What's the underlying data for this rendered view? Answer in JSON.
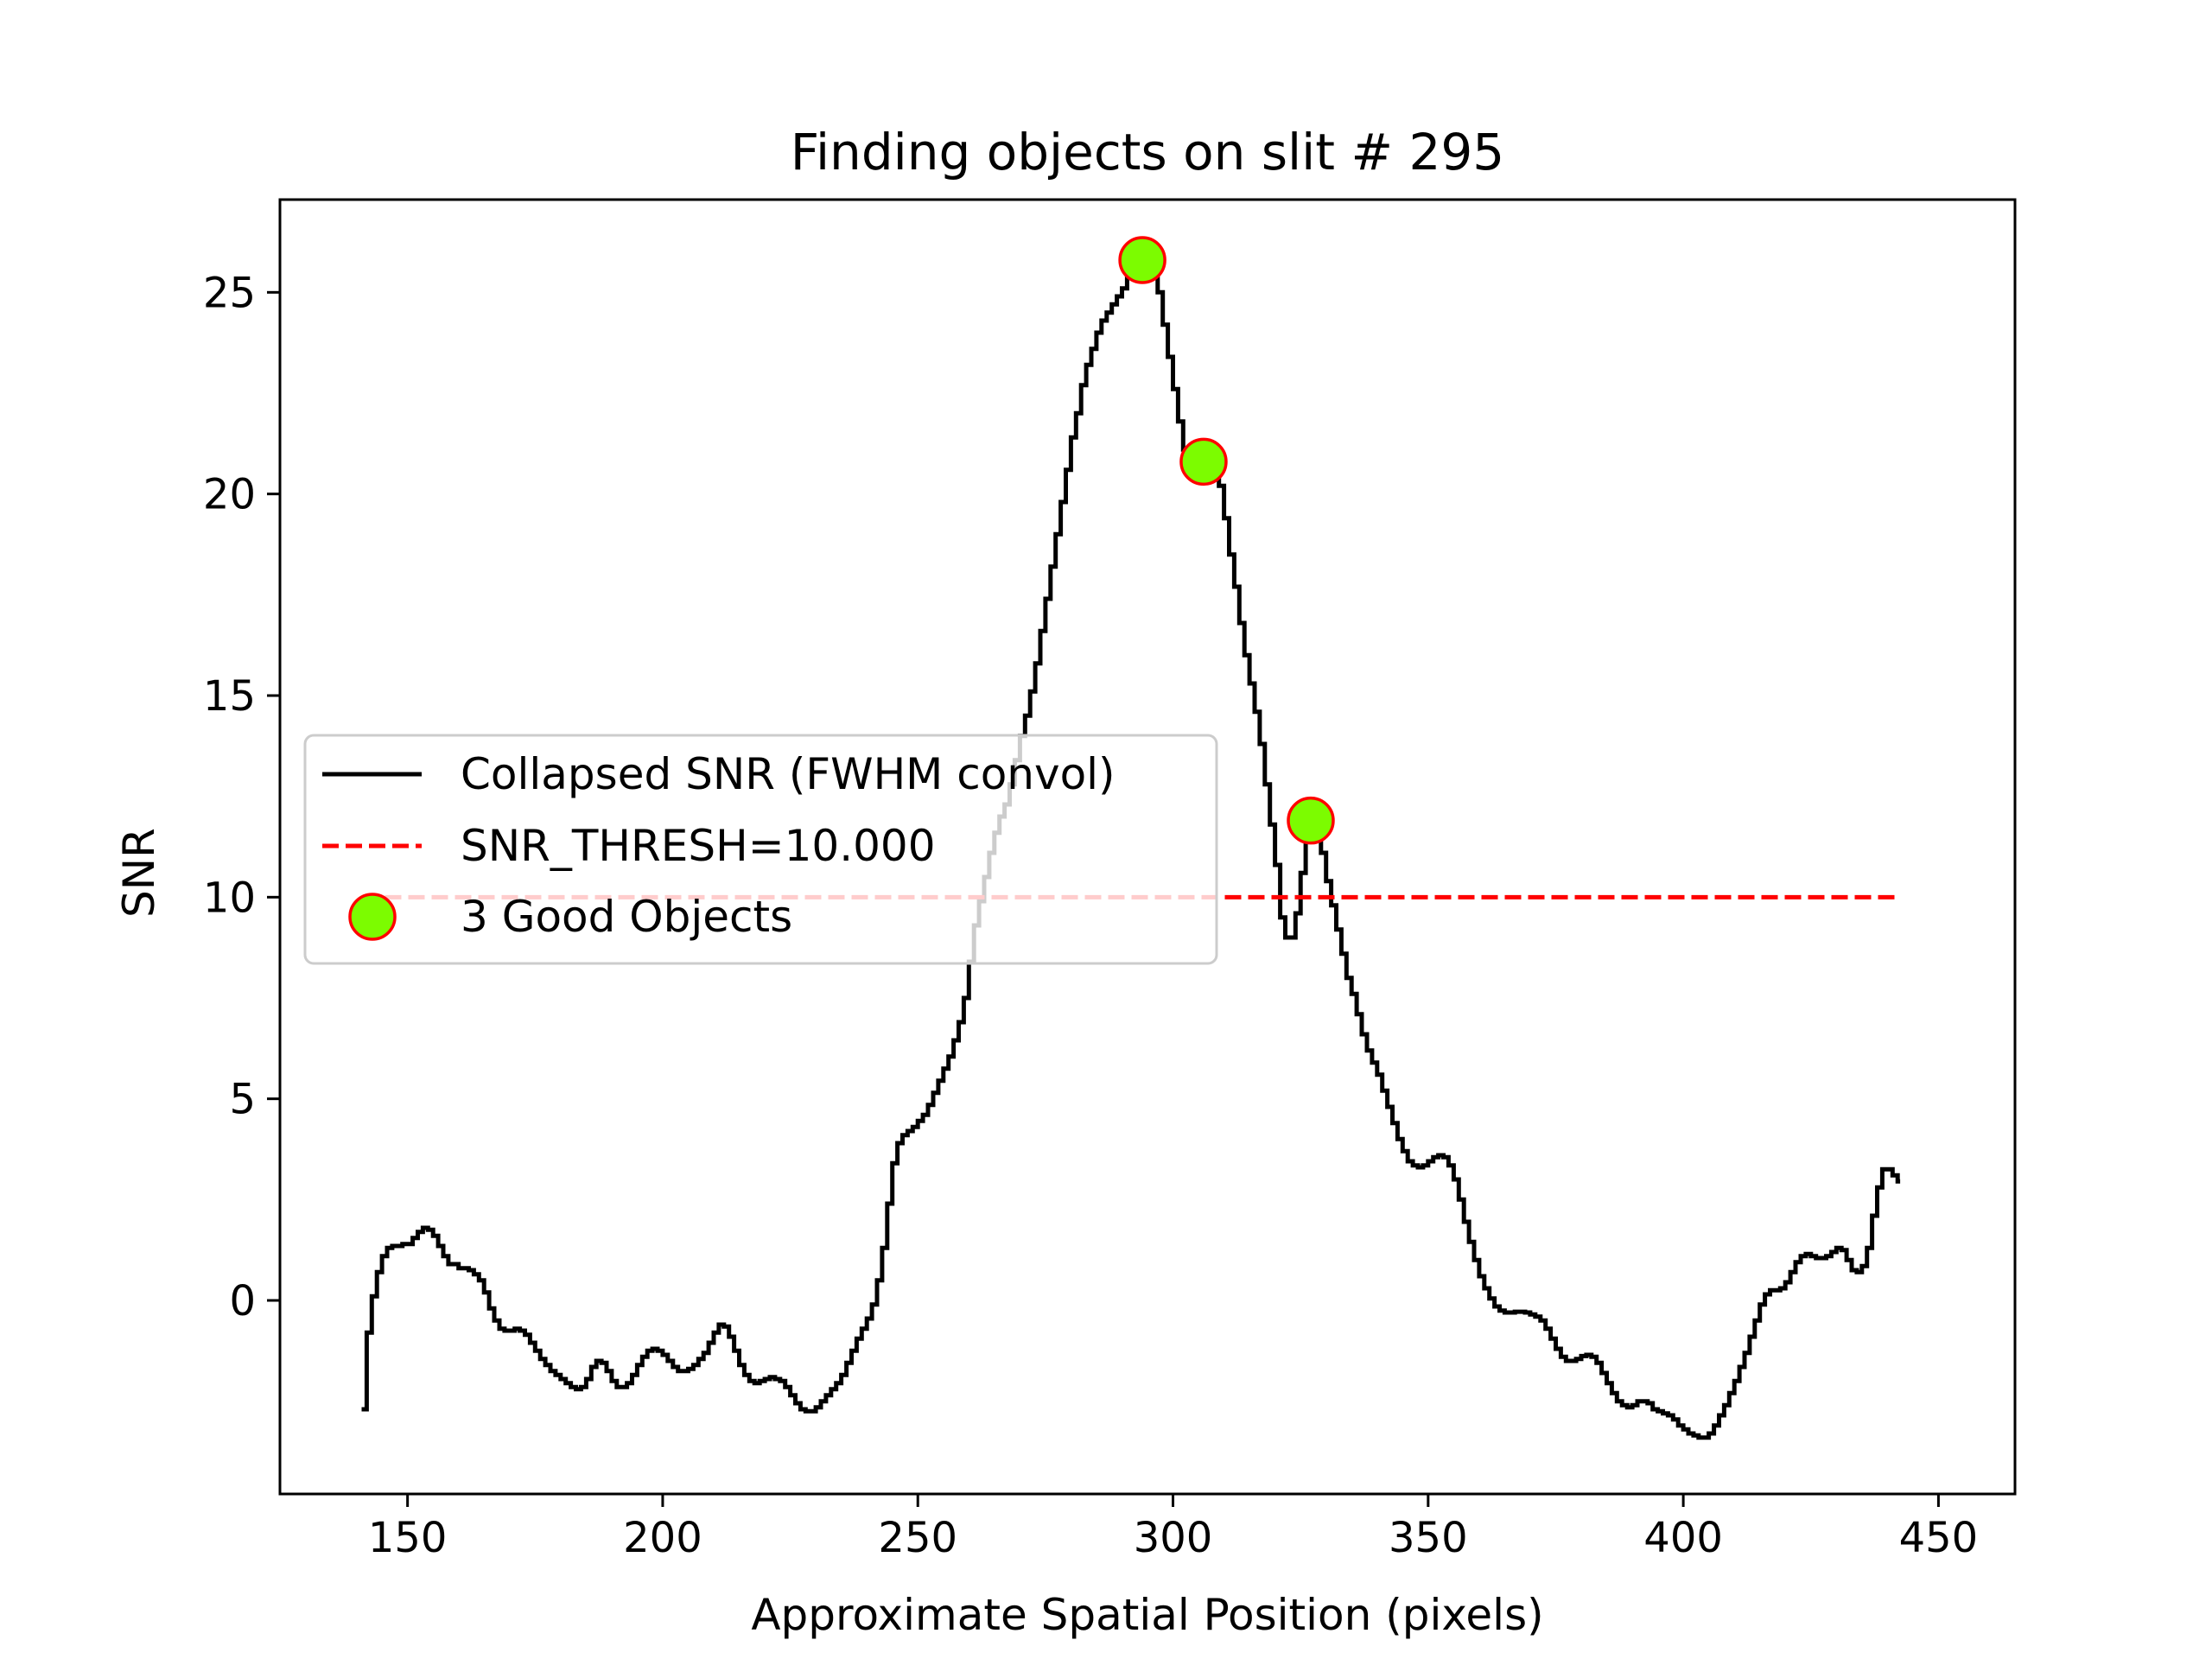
{
  "chart_data": {
    "type": "line",
    "title": "Finding objects on slit # 295",
    "xlabel": "Approximate Spatial Position (pixels)",
    "ylabel": "SNR",
    "xlim": [
      125,
      465
    ],
    "ylim": [
      -4.8,
      27.3
    ],
    "xticks": [
      150,
      200,
      250,
      300,
      350,
      400,
      450
    ],
    "yticks": [
      0,
      5,
      10,
      15,
      20,
      25
    ],
    "legend_position": "center-left",
    "series": [
      {
        "name": "Collapsed SNR (FWHM convol)",
        "color": "#000000",
        "style": "steps",
        "points": [
          [
            141,
            -2.7
          ],
          [
            142,
            -0.8
          ],
          [
            143,
            0.1
          ],
          [
            144,
            0.7
          ],
          [
            145,
            1.1
          ],
          [
            146,
            1.3
          ],
          [
            147,
            1.35
          ],
          [
            149,
            1.4
          ],
          [
            150,
            1.4
          ],
          [
            151,
            1.55
          ],
          [
            152,
            1.7
          ],
          [
            153,
            1.8
          ],
          [
            154,
            1.75
          ],
          [
            155,
            1.6
          ],
          [
            156,
            1.35
          ],
          [
            157,
            1.1
          ],
          [
            158,
            0.9
          ],
          [
            160,
            0.8
          ],
          [
            162,
            0.75
          ],
          [
            163,
            0.65
          ],
          [
            164,
            0.5
          ],
          [
            165,
            0.2
          ],
          [
            166,
            -0.2
          ],
          [
            167,
            -0.5
          ],
          [
            168,
            -0.7
          ],
          [
            169,
            -0.75
          ],
          [
            171,
            -0.7
          ],
          [
            172,
            -0.75
          ],
          [
            173,
            -0.85
          ],
          [
            174,
            -1.05
          ],
          [
            175,
            -1.25
          ],
          [
            176,
            -1.45
          ],
          [
            177,
            -1.6
          ],
          [
            178,
            -1.75
          ],
          [
            179,
            -1.85
          ],
          [
            180,
            -1.95
          ],
          [
            181,
            -2.05
          ],
          [
            182,
            -2.15
          ],
          [
            183,
            -2.2
          ],
          [
            184,
            -2.15
          ],
          [
            185,
            -1.95
          ],
          [
            186,
            -1.65
          ],
          [
            187,
            -1.5
          ],
          [
            188,
            -1.55
          ],
          [
            189,
            -1.75
          ],
          [
            190,
            -2.0
          ],
          [
            191,
            -2.15
          ],
          [
            192,
            -2.15
          ],
          [
            193,
            -2.05
          ],
          [
            194,
            -1.85
          ],
          [
            195,
            -1.6
          ],
          [
            196,
            -1.4
          ],
          [
            197,
            -1.25
          ],
          [
            198,
            -1.2
          ],
          [
            199,
            -1.25
          ],
          [
            200,
            -1.35
          ],
          [
            201,
            -1.5
          ],
          [
            202,
            -1.65
          ],
          [
            203,
            -1.75
          ],
          [
            204,
            -1.75
          ],
          [
            205,
            -1.7
          ],
          [
            206,
            -1.6
          ],
          [
            207,
            -1.45
          ],
          [
            208,
            -1.3
          ],
          [
            209,
            -1.05
          ],
          [
            210,
            -0.8
          ],
          [
            211,
            -0.6
          ],
          [
            212,
            -0.65
          ],
          [
            213,
            -0.9
          ],
          [
            214,
            -1.25
          ],
          [
            215,
            -1.6
          ],
          [
            216,
            -1.85
          ],
          [
            217,
            -2.0
          ],
          [
            218,
            -2.05
          ],
          [
            219,
            -2.0
          ],
          [
            220,
            -1.95
          ],
          [
            221,
            -1.9
          ],
          [
            222,
            -1.95
          ],
          [
            223,
            -2.0
          ],
          [
            224,
            -2.15
          ],
          [
            225,
            -2.35
          ],
          [
            226,
            -2.55
          ],
          [
            227,
            -2.7
          ],
          [
            228,
            -2.75
          ],
          [
            229,
            -2.75
          ],
          [
            230,
            -2.65
          ],
          [
            231,
            -2.5
          ],
          [
            232,
            -2.35
          ],
          [
            233,
            -2.2
          ],
          [
            234,
            -2.05
          ],
          [
            235,
            -1.85
          ],
          [
            236,
            -1.55
          ],
          [
            237,
            -1.25
          ],
          [
            238,
            -0.95
          ],
          [
            239,
            -0.7
          ],
          [
            240,
            -0.45
          ],
          [
            241,
            -0.1
          ],
          [
            242,
            0.5
          ],
          [
            243,
            1.3
          ],
          [
            244,
            2.4
          ],
          [
            245,
            3.4
          ],
          [
            246,
            3.9
          ],
          [
            247,
            4.1
          ],
          [
            248,
            4.2
          ],
          [
            249,
            4.3
          ],
          [
            250,
            4.45
          ],
          [
            251,
            4.6
          ],
          [
            252,
            4.85
          ],
          [
            253,
            5.15
          ],
          [
            254,
            5.45
          ],
          [
            255,
            5.75
          ],
          [
            256,
            6.05
          ],
          [
            257,
            6.45
          ],
          [
            258,
            6.9
          ],
          [
            259,
            7.5
          ],
          [
            260,
            8.4
          ],
          [
            261,
            9.3
          ],
          [
            262,
            9.9
          ],
          [
            263,
            10.5
          ],
          [
            264,
            11.1
          ],
          [
            265,
            11.6
          ],
          [
            266,
            12.0
          ],
          [
            267,
            12.3
          ],
          [
            268,
            12.8
          ],
          [
            269,
            13.4
          ],
          [
            270,
            14.0
          ],
          [
            271,
            14.5
          ],
          [
            272,
            15.1
          ],
          [
            273,
            15.8
          ],
          [
            274,
            16.6
          ],
          [
            275,
            17.4
          ],
          [
            276,
            18.2
          ],
          [
            277,
            19.0
          ],
          [
            278,
            19.8
          ],
          [
            279,
            20.6
          ],
          [
            280,
            21.4
          ],
          [
            281,
            22.0
          ],
          [
            282,
            22.7
          ],
          [
            283,
            23.2
          ],
          [
            284,
            23.6
          ],
          [
            285,
            24.0
          ],
          [
            286,
            24.3
          ],
          [
            287,
            24.5
          ],
          [
            288,
            24.7
          ],
          [
            289,
            24.9
          ],
          [
            290,
            25.1
          ],
          [
            291,
            25.4
          ],
          [
            292,
            25.6
          ],
          [
            293,
            25.7
          ],
          [
            294,
            25.8
          ],
          [
            295,
            25.7
          ],
          [
            296,
            25.5
          ],
          [
            297,
            25.0
          ],
          [
            298,
            24.2
          ],
          [
            299,
            23.4
          ],
          [
            300,
            22.6
          ],
          [
            301,
            21.8
          ],
          [
            302,
            21.1
          ],
          [
            303,
            20.8
          ],
          [
            304,
            20.7
          ],
          [
            305,
            20.75
          ],
          [
            306,
            20.8
          ],
          [
            307,
            20.75
          ],
          [
            308,
            20.6
          ],
          [
            309,
            20.2
          ],
          [
            310,
            19.4
          ],
          [
            311,
            18.5
          ],
          [
            312,
            17.7
          ],
          [
            313,
            16.8
          ],
          [
            314,
            16.0
          ],
          [
            315,
            15.3
          ],
          [
            316,
            14.6
          ],
          [
            317,
            13.8
          ],
          [
            318,
            12.8
          ],
          [
            319,
            11.8
          ],
          [
            320,
            10.8
          ],
          [
            321,
            9.5
          ],
          [
            322,
            9.0
          ],
          [
            323,
            9.0
          ],
          [
            324,
            9.6
          ],
          [
            325,
            10.6
          ],
          [
            326,
            11.5
          ],
          [
            327,
            11.9
          ],
          [
            328,
            11.7
          ],
          [
            329,
            11.1
          ],
          [
            330,
            10.4
          ],
          [
            331,
            9.8
          ],
          [
            332,
            9.2
          ],
          [
            333,
            8.6
          ],
          [
            334,
            8.0
          ],
          [
            335,
            7.6
          ],
          [
            336,
            7.1
          ],
          [
            337,
            6.6
          ],
          [
            338,
            6.2
          ],
          [
            339,
            5.9
          ],
          [
            340,
            5.6
          ],
          [
            341,
            5.2
          ],
          [
            342,
            4.8
          ],
          [
            343,
            4.4
          ],
          [
            344,
            4.0
          ],
          [
            345,
            3.7
          ],
          [
            346,
            3.45
          ],
          [
            347,
            3.35
          ],
          [
            348,
            3.3
          ],
          [
            349,
            3.35
          ],
          [
            350,
            3.45
          ],
          [
            351,
            3.55
          ],
          [
            352,
            3.6
          ],
          [
            353,
            3.55
          ],
          [
            354,
            3.35
          ],
          [
            355,
            3.0
          ],
          [
            356,
            2.5
          ],
          [
            357,
            1.95
          ],
          [
            358,
            1.45
          ],
          [
            359,
            1.0
          ],
          [
            360,
            0.6
          ],
          [
            361,
            0.3
          ],
          [
            362,
            0.05
          ],
          [
            363,
            -0.15
          ],
          [
            364,
            -0.25
          ],
          [
            365,
            -0.3
          ],
          [
            367,
            -0.28
          ],
          [
            369,
            -0.3
          ],
          [
            370,
            -0.35
          ],
          [
            371,
            -0.4
          ],
          [
            372,
            -0.5
          ],
          [
            373,
            -0.7
          ],
          [
            374,
            -0.95
          ],
          [
            375,
            -1.2
          ],
          [
            376,
            -1.4
          ],
          [
            377,
            -1.5
          ],
          [
            378,
            -1.5
          ],
          [
            379,
            -1.45
          ],
          [
            380,
            -1.38
          ],
          [
            381,
            -1.35
          ],
          [
            382,
            -1.4
          ],
          [
            383,
            -1.55
          ],
          [
            384,
            -1.8
          ],
          [
            385,
            -2.05
          ],
          [
            386,
            -2.3
          ],
          [
            387,
            -2.5
          ],
          [
            388,
            -2.6
          ],
          [
            389,
            -2.65
          ],
          [
            390,
            -2.6
          ],
          [
            391,
            -2.5
          ],
          [
            392,
            -2.5
          ],
          [
            393,
            -2.55
          ],
          [
            394,
            -2.7
          ],
          [
            395,
            -2.75
          ],
          [
            396,
            -2.8
          ],
          [
            397,
            -2.85
          ],
          [
            398,
            -2.95
          ],
          [
            399,
            -3.1
          ],
          [
            400,
            -3.2
          ],
          [
            401,
            -3.3
          ],
          [
            402,
            -3.35
          ],
          [
            403,
            -3.4
          ],
          [
            404,
            -3.4
          ],
          [
            405,
            -3.3
          ],
          [
            406,
            -3.1
          ],
          [
            407,
            -2.85
          ],
          [
            408,
            -2.6
          ],
          [
            409,
            -2.3
          ],
          [
            410,
            -2.0
          ],
          [
            411,
            -1.65
          ],
          [
            412,
            -1.3
          ],
          [
            413,
            -0.9
          ],
          [
            414,
            -0.5
          ],
          [
            415,
            -0.1
          ],
          [
            416,
            0.15
          ],
          [
            417,
            0.25
          ],
          [
            418,
            0.25
          ],
          [
            419,
            0.3
          ],
          [
            420,
            0.45
          ],
          [
            421,
            0.7
          ],
          [
            422,
            0.95
          ],
          [
            423,
            1.1
          ],
          [
            424,
            1.15
          ],
          [
            425,
            1.1
          ],
          [
            426,
            1.05
          ],
          [
            427,
            1.05
          ],
          [
            428,
            1.1
          ],
          [
            429,
            1.2
          ],
          [
            430,
            1.3
          ],
          [
            431,
            1.25
          ],
          [
            432,
            1.0
          ],
          [
            433,
            0.75
          ],
          [
            434,
            0.7
          ],
          [
            435,
            0.85
          ],
          [
            436,
            1.3
          ],
          [
            437,
            2.1
          ],
          [
            438,
            2.8
          ],
          [
            439,
            3.25
          ],
          [
            440,
            3.25
          ],
          [
            441,
            3.1
          ],
          [
            442,
            2.95
          ],
          [
            442.5,
            2.95
          ]
        ]
      },
      {
        "name": "SNR_THRESH=10.000",
        "color": "#ff0000",
        "style": "dashed",
        "points": [
          [
            141,
            10.0
          ],
          [
            442,
            10.0
          ]
        ]
      },
      {
        "name": "3 Good Objects",
        "color": "#7cfc00",
        "edgecolor": "#ff0000",
        "style": "markers",
        "points": [
          [
            294,
            25.8
          ],
          [
            306,
            20.8
          ],
          [
            327,
            11.9
          ]
        ]
      }
    ]
  }
}
